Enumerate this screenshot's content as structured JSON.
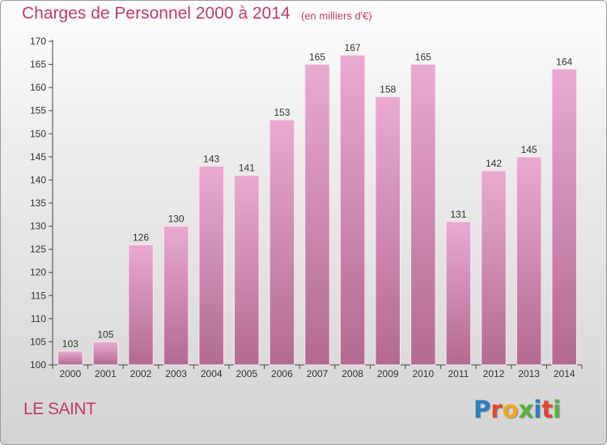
{
  "title": "Charges de Personnel 2000 à 2014",
  "subtitle": "(en milliers d'€)",
  "place": "LE SAINT",
  "logo_text": "Proxiti",
  "colors": {
    "title": "#c23a6e",
    "bar_top": "#e9aad2",
    "bar_bottom": "#b26a92",
    "logo": [
      "#2a7fc1",
      "#e8462c",
      "#f5a623",
      "#56b23a",
      "#2a7fc1",
      "#e8462c",
      "#56b23a"
    ]
  },
  "chart_data": {
    "type": "bar",
    "categories": [
      "2000",
      "2001",
      "2002",
      "2003",
      "2004",
      "2005",
      "2006",
      "2007",
      "2008",
      "2009",
      "2010",
      "2011",
      "2012",
      "2013",
      "2014"
    ],
    "values": [
      103,
      105,
      126,
      130,
      143,
      141,
      153,
      165,
      167,
      158,
      165,
      131,
      142,
      145,
      164
    ],
    "ylim": [
      100,
      170
    ],
    "yticks": [
      100,
      105,
      110,
      115,
      120,
      125,
      130,
      135,
      140,
      145,
      150,
      155,
      160,
      165,
      170
    ],
    "grid": false,
    "legend": "none",
    "data_labels": true
  }
}
